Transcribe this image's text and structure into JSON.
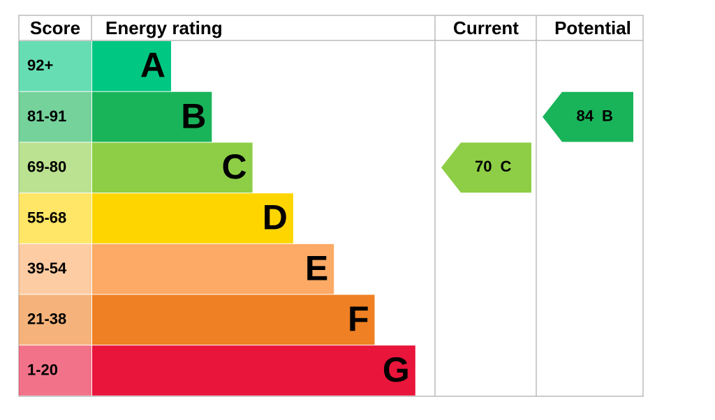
{
  "headers": [
    "Score",
    "Energy rating",
    "Current",
    "Potential"
  ],
  "bands": [
    {
      "score": "92+",
      "letter": "A",
      "color": "#00c781"
    },
    {
      "score": "81-91",
      "letter": "B",
      "color": "#19b459"
    },
    {
      "score": "69-80",
      "letter": "C",
      "color": "#8dce46"
    },
    {
      "score": "55-68",
      "letter": "D",
      "color": "#ffd500"
    },
    {
      "score": "39-54",
      "letter": "E",
      "color": "#fcaa65"
    },
    {
      "score": "21-38",
      "letter": "F",
      "color": "#ef8023"
    },
    {
      "score": "1-20",
      "letter": "G",
      "color": "#e9153b"
    }
  ],
  "current": {
    "value": 70,
    "letter": "C"
  },
  "potential": {
    "value": 84,
    "letter": "B"
  }
}
